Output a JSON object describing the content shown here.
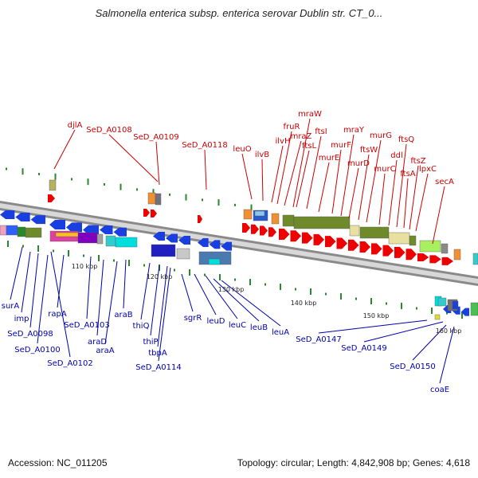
{
  "title": "Salmonella enterica subsp. enterica serovar Dublin str. CT_0...",
  "footer": {
    "accession": "Accession: NC_011205",
    "summary": "Topology: circular; Length: 4,842,908 bp; Genes: 4,618"
  },
  "scale_labels": [
    "110 kbp",
    "120 kbp",
    "130 kbp",
    "140 kbp",
    "150 kbp",
    "160 kbp"
  ],
  "top_genes": [
    "djlA",
    "SeD_A0108",
    "SeD_A0109",
    "SeD_A0118",
    "leuO",
    "ilvB",
    "ilvH",
    "fruR",
    "mraZ",
    "mraW",
    "ftsL",
    "ftsI",
    "murE",
    "murF",
    "mraY",
    "murD",
    "ftsW",
    "murG",
    "murC",
    "ddl",
    "ftsQ",
    "ftsA",
    "ftsZ",
    "lpxC",
    "secA"
  ],
  "bottom_genes": [
    "surA",
    "imp",
    "SeD_A0098",
    "SeD_A0100",
    "rapA",
    "SeD_A0102",
    "SeD_A0103",
    "araD",
    "araA",
    "araB",
    "thiQ",
    "thiP",
    "tbpA",
    "SeD_A0114",
    "sgrR",
    "leuD",
    "leuC",
    "leuB",
    "leuA",
    "SeD_A0147",
    "SeD_A0149",
    "SeD_A0150",
    "coaE"
  ],
  "colors": {
    "top_label": "#cc0000",
    "bottom_label": "#0000aa",
    "forward_arrow": "#ee0000",
    "reverse_arrow": "#1a3fe0",
    "tick": "#2a8a2a",
    "backbone": "#8a8a8a"
  }
}
